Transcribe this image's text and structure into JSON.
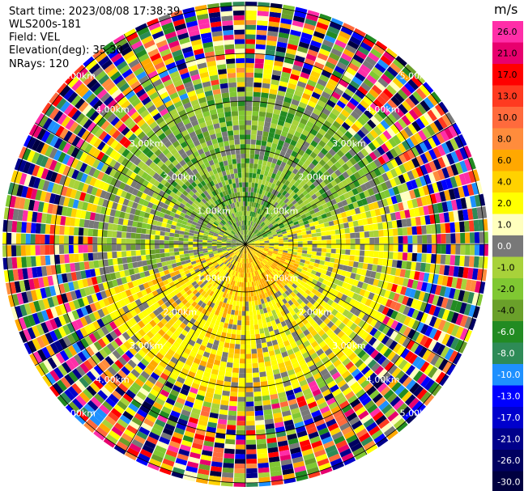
{
  "header": {
    "start_time": "Start time: 2023/08/08 17:38:39",
    "station": "WLS200s-181",
    "field": "Field: VEL",
    "elevation": "Elevation(deg): 35.30",
    "nrays": "NRays: 120"
  },
  "chart_data": {
    "type": "ppi",
    "field": "VEL",
    "n_rays": 120,
    "range_rings_km": [
      1.0,
      2.0,
      3.0,
      4.0,
      5.0
    ],
    "ring_labels": [
      "1.00km",
      "2.00km",
      "3.00km",
      "4.00km",
      "5.00km"
    ],
    "spoke_angles_deg": [
      0,
      30,
      60,
      90,
      120,
      150,
      180,
      210,
      240,
      270,
      300,
      330
    ],
    "colorbar": {
      "unit": "m/s",
      "tick_labels": [
        "26.0",
        "21.0",
        "17.0",
        "13.0",
        "10.0",
        "8.0",
        "6.0",
        "4.0",
        "2.0",
        "1.0",
        "0.0",
        "-1.0",
        "-2.0",
        "-4.0",
        "-6.0",
        "-8.0",
        "-10.0",
        "-13.0",
        "-17.0",
        "-21.0",
        "-26.0",
        "-30.0"
      ],
      "colors": [
        "#ff2ea8",
        "#e8006e",
        "#ff0000",
        "#ff3a20",
        "#ff6a3c",
        "#ff8c3c",
        "#ffa800",
        "#ffd200",
        "#ffff00",
        "#ffffbe",
        "#787878",
        "#a8d23a",
        "#80c832",
        "#6aa02a",
        "#228b22",
        "#2e8b57",
        "#1e90ff",
        "#0000ff",
        "#0000cd",
        "#00008b",
        "#000060",
        "#000040"
      ]
    }
  }
}
